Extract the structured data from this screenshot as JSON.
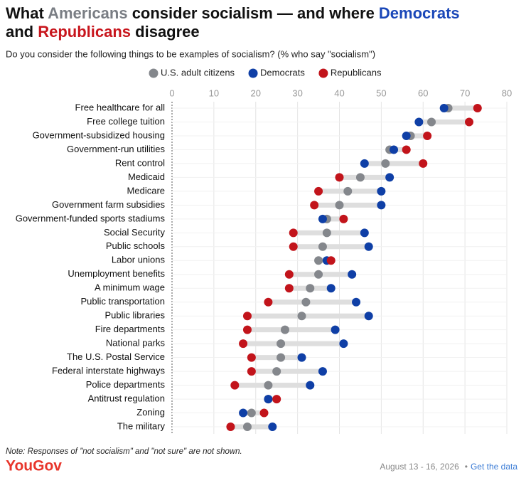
{
  "chart_data": {
    "type": "dot",
    "title": [
      [
        {
          "text": "What ",
          "color": "#111111"
        },
        {
          "text": "Americans",
          "color": "#7a7e84"
        },
        {
          "text": " consider socialism — and where ",
          "color": "#111111"
        },
        {
          "text": "Democrats",
          "color": "#1a47b8"
        }
      ],
      [
        {
          "text": "and ",
          "color": "#111111"
        },
        {
          "text": "Republicans",
          "color": "#c8161d"
        },
        {
          "text": " disagree",
          "color": "#111111"
        }
      ]
    ],
    "subtitle": "Do you consider the following things to be examples of socialism? (% who say \"socialism\")",
    "categories": [
      "Free healthcare for all",
      "Free college tuition",
      "Government-subsidized housing",
      "Government-run utilities",
      "Rent control",
      "Medicaid",
      "Medicare",
      "Government farm subsidies",
      "Government-funded sports stadiums",
      "Social Security",
      "Public schools",
      "Labor unions",
      "Unemployment benefits",
      "A minimum wage",
      "Public transportation",
      "Public libraries",
      "Fire departments",
      "National parks",
      "The U.S. Postal Service",
      "Federal interstate highways",
      "Police departments",
      "Antitrust regulation",
      "Zoning",
      "The military"
    ],
    "series": [
      {
        "name": "U.S. adult citizens",
        "color": "#84878c",
        "values": [
          66,
          62,
          57,
          52,
          51,
          45,
          42,
          40,
          37,
          37,
          36,
          35,
          35,
          33,
          32,
          31,
          27,
          26,
          26,
          25,
          23,
          23,
          19,
          18
        ]
      },
      {
        "name": "Democrats",
        "color": "#0f3fa6",
        "values": [
          65,
          59,
          56,
          53,
          46,
          52,
          50,
          50,
          36,
          46,
          47,
          37,
          43,
          38,
          44,
          47,
          39,
          41,
          31,
          36,
          33,
          23,
          17,
          24
        ]
      },
      {
        "name": "Republicans",
        "color": "#c2141b",
        "values": [
          73,
          71,
          61,
          56,
          60,
          40,
          35,
          34,
          41,
          29,
          29,
          38,
          28,
          28,
          23,
          18,
          18,
          17,
          19,
          19,
          15,
          25,
          22,
          14
        ]
      }
    ],
    "xlim": [
      0,
      80
    ],
    "xticks": [
      0,
      10,
      20,
      30,
      40,
      50,
      60,
      70,
      80
    ],
    "grid": true,
    "note": "Note: Responses of \"not socialism\" and \"not sure\" are not shown.",
    "brand": "YouGov",
    "date": "August 13 - 16, 2026",
    "separator": "•",
    "link": "Get the data"
  }
}
